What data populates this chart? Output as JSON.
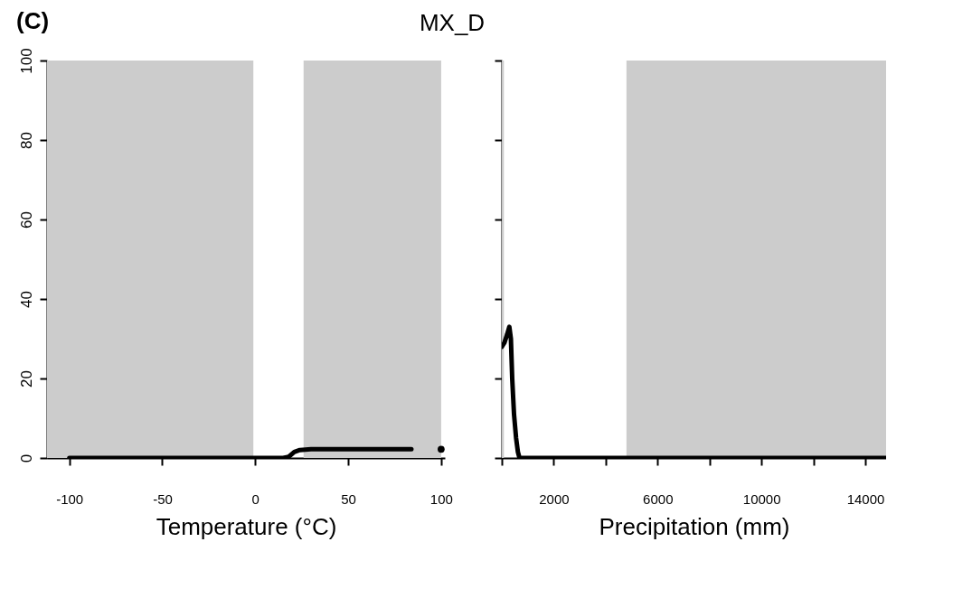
{
  "chart_data": [
    {
      "type": "line",
      "title": "MX_D",
      "annotations": [
        "(C)"
      ],
      "xlabel": "Temperature (°C)",
      "xlim": [
        -112,
        102
      ],
      "xticks": [
        -100,
        -50,
        0,
        50,
        100
      ],
      "ylim": [
        0,
        100
      ],
      "yticks": [
        0,
        20,
        40,
        60,
        80,
        100
      ],
      "grid": false,
      "line_style": "solid",
      "bands": [
        {
          "axis": "x",
          "from": -112,
          "to": -1,
          "color": "#cccccc"
        },
        {
          "axis": "x",
          "from": 26,
          "to": 100,
          "color": "#cccccc"
        }
      ],
      "series": [
        {
          "type": "line",
          "color": "#000000",
          "x": [
            -100,
            -50,
            0,
            15,
            18,
            21,
            24,
            30,
            84
          ],
          "values": [
            0,
            0,
            0,
            0,
            0.3,
            1.5,
            2,
            2.2,
            2.2
          ]
        },
        {
          "type": "scatter",
          "color": "#000000",
          "marker": "circle",
          "x": [
            100
          ],
          "values": [
            2.2
          ]
        }
      ]
    },
    {
      "type": "line",
      "xlabel": "Precipitation (mm)",
      "xlim": [
        0,
        14800
      ],
      "xticks": [
        {
          "value": 0,
          "label": null
        },
        2000,
        {
          "value": 4000,
          "label": null
        },
        6000,
        {
          "value": 8000,
          "label": null
        },
        10000,
        {
          "value": 12000,
          "label": null
        },
        14000
      ],
      "ylim": [
        0,
        100
      ],
      "yticks": [
        0,
        20,
        40,
        60,
        80,
        100
      ],
      "tick_labels": "x",
      "grid": false,
      "line_style": "solid",
      "bands": [
        {
          "axis": "x",
          "from": 0,
          "to": 80,
          "color": "#cccccc"
        },
        {
          "axis": "x",
          "from": 4800,
          "to": 14800,
          "color": "#cccccc"
        }
      ],
      "series": [
        {
          "type": "line",
          "color": "#000000",
          "x": [
            0,
            100,
            200,
            290,
            350,
            400,
            470,
            550,
            620,
            680,
            1000,
            5000,
            10000,
            14800
          ],
          "values": [
            28,
            29,
            31,
            33,
            30,
            20,
            11,
            5,
            1.5,
            0,
            0,
            0,
            0,
            0
          ]
        }
      ]
    }
  ]
}
